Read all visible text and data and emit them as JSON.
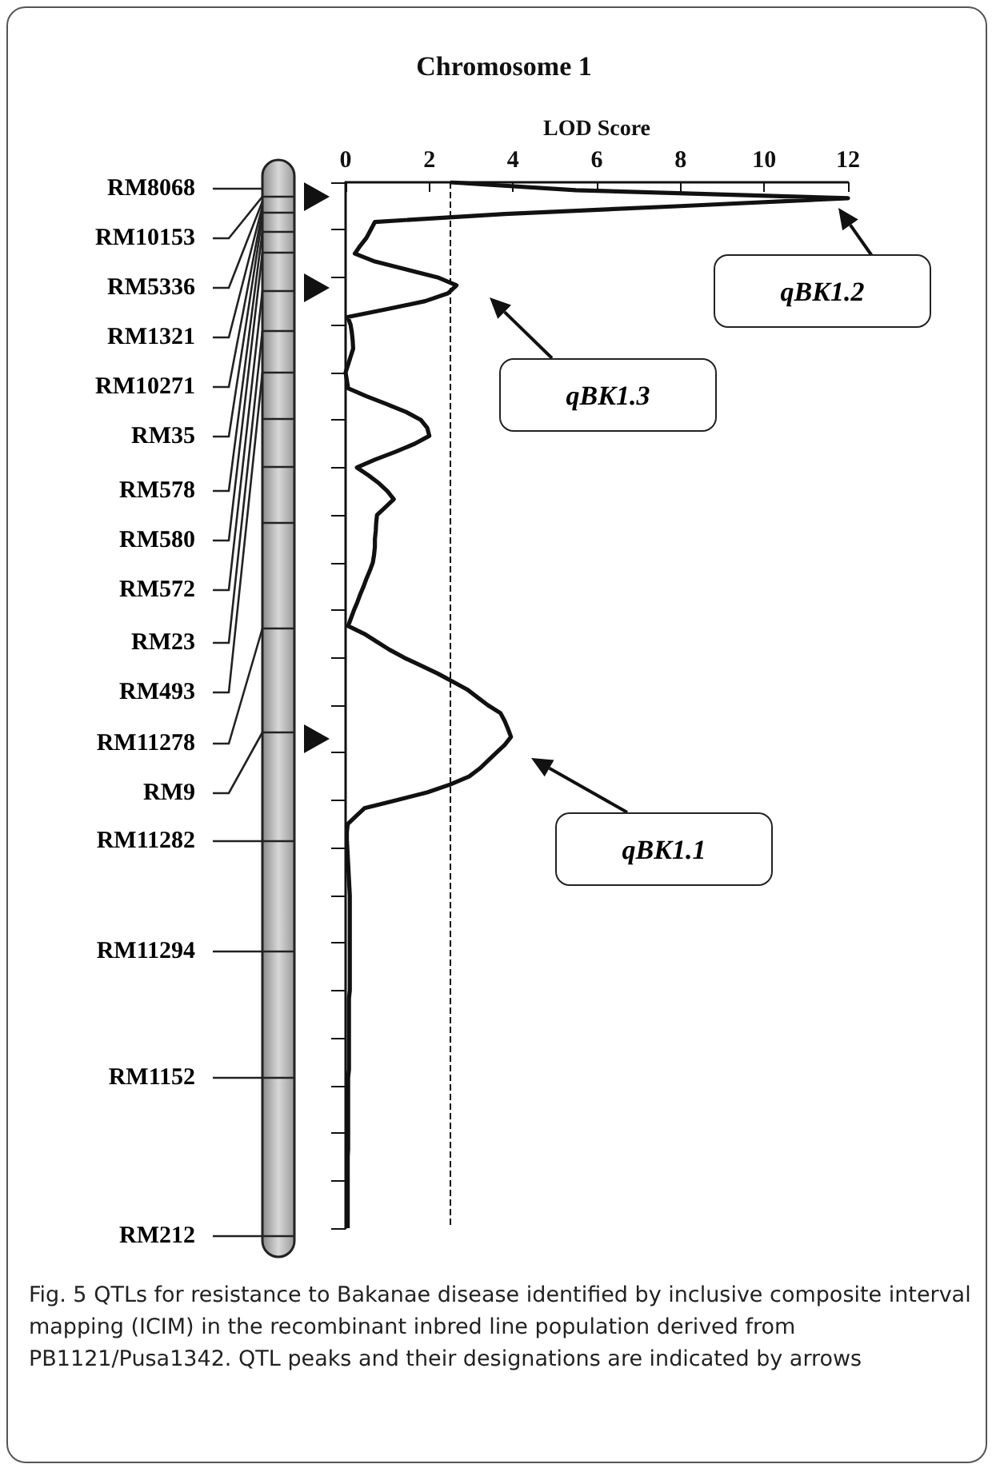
{
  "chart_data": {
    "type": "line",
    "orientation": "horizontal",
    "title": "Chromosome 1",
    "xlabel": "LOD Score",
    "xlim": [
      0,
      12
    ],
    "xticks": [
      0,
      2,
      4,
      6,
      8,
      10,
      12
    ],
    "tick_labels": "x",
    "grid": false,
    "line_style": "solid",
    "color": "#111111",
    "ref_lines": [
      {
        "axis": "x",
        "value": 2.5,
        "line_style": "dashed",
        "color": "#111111"
      }
    ],
    "annotations": [
      "RM8068",
      "RM10153",
      "RM5336",
      "RM1321",
      "RM10271",
      "RM35",
      "RM578",
      "RM580",
      "RM572",
      "RM23",
      "RM493",
      "RM11278",
      "RM9",
      "RM11282",
      "RM11294",
      "RM1152",
      "RM212",
      "qBK1.2",
      "qBK1.3",
      "qBK1.1",
      "Fig. 5 QTLs for resistance to Bakanae disease identified by inclusive composite interval mapping (ICIM) in the recombinant inbred line population derived from PB1121/Pusa1342. QTL peaks and their designations are indicated by arrows"
    ],
    "categories": [
      null,
      null,
      null,
      null,
      null,
      null,
      null,
      null,
      null,
      null,
      null,
      null,
      null,
      null,
      null,
      null,
      null,
      null,
      null,
      null,
      null,
      null,
      null,
      null,
      null,
      null,
      null,
      null,
      null,
      null,
      null,
      null,
      null,
      null,
      null,
      null,
      null,
      null,
      null,
      null,
      null,
      null,
      null,
      null,
      null,
      null,
      null,
      null,
      null,
      null,
      null,
      null,
      null,
      null,
      null,
      null,
      null,
      null,
      null,
      null,
      null,
      null,
      null,
      null,
      null,
      null,
      null,
      null,
      null,
      null,
      null,
      null,
      null,
      null,
      null,
      null,
      null,
      null,
      null,
      null,
      null,
      null,
      null,
      null,
      null,
      null,
      null,
      null,
      null,
      null,
      null,
      null,
      null,
      null,
      null,
      null,
      null,
      null,
      null,
      null,
      null,
      null,
      null,
      null,
      null,
      null,
      null,
      null,
      null,
      null,
      null,
      null,
      null,
      null,
      null,
      null,
      null,
      null,
      null,
      null,
      null,
      null,
      null,
      null,
      null,
      null,
      null,
      null,
      null,
      null,
      null,
      null,
      null
    ],
    "values": [
      2.5,
      5.5,
      12,
      8,
      3.8,
      0.7,
      0.6,
      0.5,
      0.35,
      0.22,
      0.7,
      1.45,
      2.2,
      2.65,
      2.45,
      1.9,
      1.0,
      0.05,
      0.12,
      0.15,
      0.17,
      0.18,
      0.12,
      0.06,
      0,
      0.03,
      0.06,
      0.5,
      0.98,
      1.45,
      1.8,
      1.95,
      2.0,
      1.65,
      1.2,
      0.7,
      0.27,
      0.55,
      0.8,
      1.0,
      1.15,
      0.95,
      0.75,
      0.73,
      0.72,
      0.7,
      0.7,
      0.68,
      0.65,
      0.58,
      0.5,
      0.43,
      0.35,
      0.28,
      0.2,
      0.13,
      0.06,
      0.45,
      0.75,
      1.05,
      1.4,
      1.8,
      2.2,
      2.55,
      2.9,
      3.15,
      3.4,
      3.7,
      3.8,
      3.88,
      3.95,
      3.8,
      3.6,
      3.4,
      3.2,
      2.95,
      2.5,
      1.95,
      1.2,
      0.45,
      0.25,
      0.05,
      0.03,
      0.03,
      0.04,
      0.05,
      0.06,
      0.07,
      0.08,
      0.09,
      0.1,
      0.1,
      0.1,
      0.1,
      0.1,
      0.1,
      0.1,
      0.1,
      0.1,
      0.1,
      0.1,
      0.1,
      0.1,
      0.08,
      0.08,
      0.08,
      0.08,
      0.08,
      0.08,
      0.08,
      0.08,
      0.08,
      0.08,
      0.06,
      0.06,
      0.06,
      0.06,
      0.06,
      0.06,
      0.06,
      0.06,
      0.06,
      0.06,
      0.05,
      0.05,
      0.05,
      0.05,
      0.05,
      0.05,
      0.05,
      0.05,
      0.05,
      0.05
    ]
  }
}
